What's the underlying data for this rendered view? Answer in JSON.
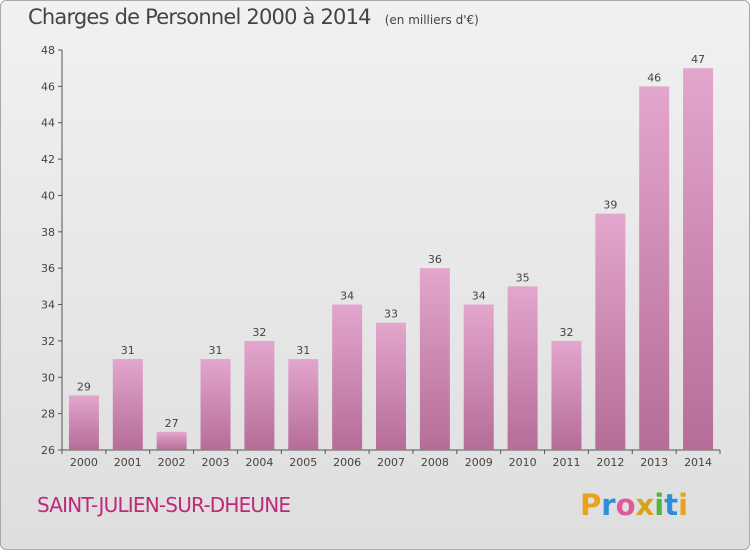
{
  "header": {
    "title": "Charges de Personnel 2000 à 2014",
    "unit": "(en milliers d'€)"
  },
  "footer": {
    "commune": "SAINT-JULIEN-SUR-DHEUNE",
    "logo_letters": [
      "P",
      "r",
      "o",
      "x",
      "i",
      "t",
      "i"
    ],
    "logo_colors": [
      "#e8a21b",
      "#2e8fd6",
      "#e05a9a",
      "#d9a21b",
      "#56b33b",
      "#2e8fd6",
      "#e8a21b"
    ]
  },
  "chart_data": {
    "type": "bar",
    "title": "Charges de Personnel 2000 à 2014",
    "subtitle": "(en milliers d'€)",
    "categories": [
      "2000",
      "2001",
      "2002",
      "2003",
      "2004",
      "2005",
      "2006",
      "2007",
      "2008",
      "2009",
      "2010",
      "2011",
      "2012",
      "2013",
      "2014"
    ],
    "values": [
      29,
      31,
      27,
      31,
      32,
      31,
      34,
      33,
      36,
      34,
      35,
      32,
      39,
      46,
      47
    ],
    "ylim": [
      26,
      48
    ],
    "yticks": [
      26,
      28,
      30,
      32,
      34,
      36,
      38,
      40,
      42,
      44,
      46,
      48
    ],
    "grid": false,
    "bar_color_top": "#e3a6cc",
    "bar_color_bottom": "#b56d97"
  }
}
